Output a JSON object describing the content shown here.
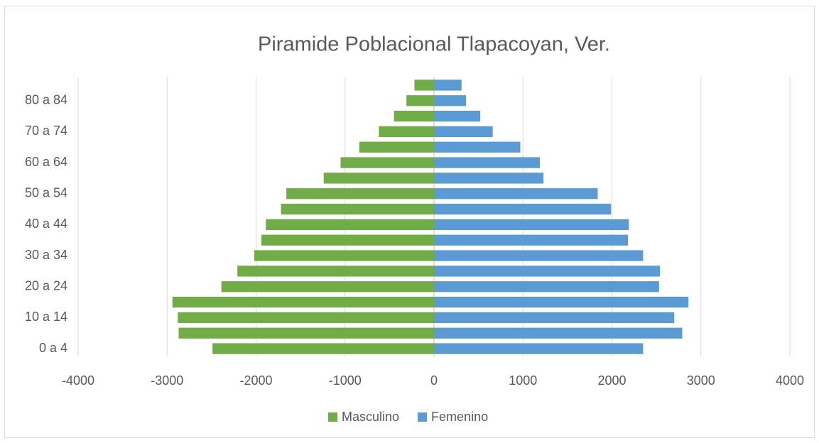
{
  "chart_data": {
    "type": "bar",
    "orientation": "horizontal",
    "stacked": true,
    "title": "Piramide Poblacional Tlapacoyan, Ver.",
    "categories": [
      "0 a 4",
      null,
      "10 a 14",
      null,
      "20 a 24",
      null,
      "30 a 34",
      null,
      "40 a 44",
      null,
      "50 a 54",
      null,
      "60 a 64",
      null,
      "70 a 74",
      null,
      "80 a 84",
      null
    ],
    "series": [
      {
        "name": "Masculino",
        "color": "#70ad47",
        "values": [
          -2490,
          -2870,
          -2880,
          -2940,
          -2390,
          -2210,
          -2020,
          -1940,
          -1890,
          -1720,
          -1660,
          -1240,
          -1050,
          -840,
          -620,
          -450,
          -310,
          -220
        ]
      },
      {
        "name": "Femenino",
        "color": "#5b9bd5",
        "values": [
          2350,
          2790,
          2700,
          2860,
          2530,
          2540,
          2350,
          2180,
          2190,
          1990,
          1840,
          1230,
          1190,
          970,
          660,
          520,
          360,
          310
        ]
      }
    ],
    "xlim": [
      -4000,
      4000
    ],
    "xticks": [
      -4000,
      -3000,
      -2000,
      -1000,
      0,
      1000,
      2000,
      3000,
      4000
    ],
    "grid": true,
    "legend": "bottom"
  }
}
